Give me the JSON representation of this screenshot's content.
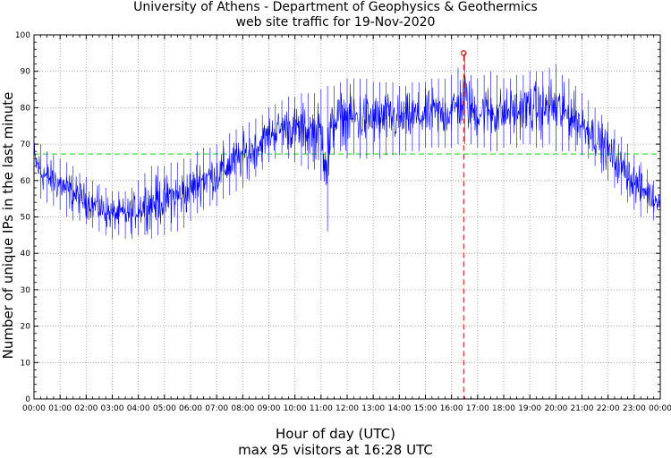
{
  "chart_data": {
    "type": "line",
    "title": "University of Athens - Department of Geophysics & Geothermics",
    "subtitle": "web site traffic for 19-Nov-2020",
    "xlabel": "Hour of day (UTC)",
    "ylabel": "Number of unique IPs in the last minute",
    "note": "max 95 visitors at 16:28 UTC",
    "xlim": [
      0,
      24
    ],
    "ylim": [
      0,
      100
    ],
    "xticks": [
      "00:00",
      "01:00",
      "02:00",
      "03:00",
      "04:00",
      "05:00",
      "06:00",
      "07:00",
      "08:00",
      "09:00",
      "10:00",
      "11:00",
      "12:00",
      "13:00",
      "14:00",
      "15:00",
      "16:00",
      "17:00",
      "18:00",
      "19:00",
      "20:00",
      "21:00",
      "22:00",
      "23:00",
      "00:00"
    ],
    "yticks": [
      0,
      10,
      20,
      30,
      40,
      50,
      60,
      70,
      80,
      90,
      100
    ],
    "grid": true,
    "series": [
      {
        "hour": [
          0,
          0.25,
          0.5,
          0.75,
          1,
          1.25,
          1.5,
          1.75,
          2,
          2.25,
          2.5,
          2.75,
          3,
          3.25,
          3.5,
          3.75,
          4,
          4.25,
          4.5,
          4.75,
          5,
          5.25,
          5.5,
          5.75,
          6,
          6.25,
          6.5,
          6.75,
          7,
          7.25,
          7.5,
          7.75,
          8,
          8.25,
          8.5,
          8.75,
          9,
          9.25,
          9.5,
          9.75,
          10,
          10.25,
          10.5,
          10.75,
          11,
          11.25,
          11.5,
          11.75,
          12,
          12.25,
          12.5,
          12.75,
          13,
          13.25,
          13.5,
          13.75,
          14,
          14.25,
          14.5,
          14.75,
          15,
          15.25,
          15.5,
          15.75,
          16,
          16.25,
          16.5,
          16.75,
          17,
          17.25,
          17.5,
          17.75,
          18,
          18.25,
          18.5,
          18.75,
          19,
          19.25,
          19.5,
          19.75,
          20,
          20.25,
          20.5,
          20.75,
          21,
          21.25,
          21.5,
          21.75,
          22,
          22.25,
          22.5,
          22.75,
          23,
          23.25,
          23.5,
          23.75,
          24
        ],
        "min": [
          58,
          55,
          54,
          53,
          52,
          50,
          49,
          49,
          48,
          47,
          46,
          45,
          44,
          45,
          44,
          44,
          45,
          45,
          44,
          45,
          45,
          46,
          46,
          47,
          49,
          51,
          52,
          53,
          53,
          55,
          56,
          57,
          58,
          60,
          61,
          63,
          65,
          66,
          67,
          66,
          65,
          64,
          63,
          63,
          60,
          46,
          67,
          68,
          66,
          67,
          66,
          66,
          67,
          66,
          67,
          67,
          67,
          68,
          68,
          68,
          69,
          69,
          69,
          69,
          69,
          70,
          70,
          70,
          69,
          69,
          68,
          68,
          69,
          70,
          69,
          70,
          70,
          69,
          69,
          70,
          68,
          68,
          68,
          68,
          67,
          66,
          64,
          62,
          60,
          58,
          56,
          54,
          52,
          50,
          51,
          49,
          52
        ],
        "max": [
          74,
          70,
          68,
          67,
          66,
          65,
          64,
          62,
          61,
          60,
          59,
          58,
          57,
          57,
          57,
          58,
          60,
          62,
          64,
          64,
          64,
          65,
          65,
          66,
          66,
          68,
          69,
          69,
          70,
          71,
          73,
          74,
          75,
          76,
          77,
          78,
          80,
          81,
          82,
          83,
          83,
          84,
          84,
          84,
          85,
          86,
          86,
          87,
          88,
          88,
          88,
          88,
          87,
          87,
          87,
          87,
          86,
          86,
          87,
          87,
          87,
          88,
          88,
          88,
          89,
          91,
          95,
          89,
          88,
          89,
          90,
          89,
          88,
          88,
          89,
          89,
          90,
          90,
          90,
          91,
          92,
          89,
          88,
          86,
          84,
          82,
          80,
          78,
          76,
          74,
          72,
          70,
          67,
          65,
          63,
          60,
          58
        ],
        "name": ""
      }
    ],
    "reference_line": {
      "value": 67.3,
      "color": "#00dd00"
    },
    "max_point": {
      "hour": 16.467,
      "value": 95,
      "color": "#dd0000"
    },
    "line_color": "#0000ff"
  }
}
